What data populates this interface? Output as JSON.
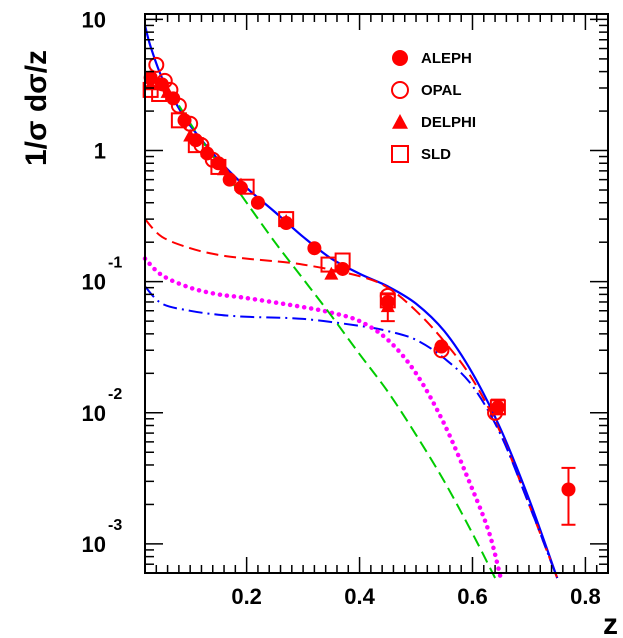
{
  "chart_data": {
    "type": "scatter",
    "title": "",
    "xlabel": "z",
    "ylabel": "1/σ dσ/z",
    "xlim": [
      0.02,
      0.84
    ],
    "ylim": [
      0.0006,
      11
    ],
    "yscale": "log",
    "grid": false,
    "legend_position": "top-right",
    "x_ticks": [
      {
        "value": 0.2,
        "label": "0.2"
      },
      {
        "value": 0.4,
        "label": "0.4"
      },
      {
        "value": 0.6,
        "label": "0.6"
      },
      {
        "value": 0.8,
        "label": "0.8"
      }
    ],
    "y_ticks": [
      {
        "value": 10,
        "base": "10",
        "exp": ""
      },
      {
        "value": 1,
        "base": "1",
        "exp": ""
      },
      {
        "value": 0.1,
        "base": "10",
        "exp": "-1"
      },
      {
        "value": 0.01,
        "base": "10",
        "exp": "-2"
      },
      {
        "value": 0.001,
        "base": "10",
        "exp": "-3"
      }
    ],
    "series": [
      {
        "name": "ALEPH",
        "marker": "filled-circle",
        "color": "#ff0000",
        "points": [
          [
            0.03,
            3.6
          ],
          [
            0.05,
            3.2
          ],
          [
            0.07,
            2.5
          ],
          [
            0.09,
            1.7
          ],
          [
            0.11,
            1.2
          ],
          [
            0.13,
            0.95
          ],
          [
            0.15,
            0.8
          ],
          [
            0.17,
            0.6
          ],
          [
            0.19,
            0.52
          ],
          [
            0.22,
            0.4
          ],
          [
            0.27,
            0.28
          ],
          [
            0.32,
            0.18
          ],
          [
            0.37,
            0.125
          ],
          [
            0.45,
            0.07
          ],
          [
            0.545,
            0.032
          ],
          [
            0.645,
            0.011
          ],
          [
            0.77,
            0.0026
          ]
        ],
        "errors": [
          [
            0.77,
            0.0014,
            0.0038
          ],
          [
            0.645,
            0.0098,
            0.0126
          ]
        ]
      },
      {
        "name": "OPAL",
        "marker": "open-circle",
        "color": "#ff0000",
        "points": [
          [
            0.04,
            4.5
          ],
          [
            0.055,
            3.4
          ],
          [
            0.065,
            2.9
          ],
          [
            0.08,
            2.2
          ],
          [
            0.1,
            1.6
          ],
          [
            0.12,
            1.1
          ],
          [
            0.14,
            0.85
          ],
          [
            0.45,
            0.078
          ],
          [
            0.545,
            0.03
          ],
          [
            0.64,
            0.01
          ]
        ]
      },
      {
        "name": "DELPHI",
        "marker": "filled-triangle",
        "color": "#ff0000",
        "points": [
          [
            0.03,
            3.2
          ],
          [
            0.06,
            2.8
          ],
          [
            0.1,
            1.3
          ],
          [
            0.13,
            1.0
          ],
          [
            0.16,
            0.72
          ],
          [
            0.19,
            0.55
          ],
          [
            0.27,
            0.29
          ],
          [
            0.35,
            0.115
          ],
          [
            0.45,
            0.065
          ]
        ],
        "errors": [
          [
            0.45,
            0.05,
            0.08
          ]
        ]
      },
      {
        "name": "SLD",
        "marker": "open-square",
        "color": "#ff0000",
        "points": [
          [
            0.03,
            2.9
          ],
          [
            0.045,
            2.7
          ],
          [
            0.08,
            1.7
          ],
          [
            0.11,
            1.1
          ],
          [
            0.15,
            0.75
          ],
          [
            0.2,
            0.53
          ],
          [
            0.27,
            0.3
          ],
          [
            0.345,
            0.135
          ],
          [
            0.37,
            0.145
          ],
          [
            0.45,
            0.072
          ],
          [
            0.645,
            0.011
          ]
        ]
      }
    ],
    "curves": [
      {
        "style": "solid",
        "color": "#0000ff",
        "points": [
          [
            0.02,
            9.0
          ],
          [
            0.03,
            6.2
          ],
          [
            0.05,
            3.6
          ],
          [
            0.08,
            2.1
          ],
          [
            0.1,
            1.55
          ],
          [
            0.15,
            0.85
          ],
          [
            0.2,
            0.52
          ],
          [
            0.25,
            0.34
          ],
          [
            0.3,
            0.22
          ],
          [
            0.35,
            0.15
          ],
          [
            0.4,
            0.115
          ],
          [
            0.45,
            0.092
          ],
          [
            0.5,
            0.068
          ],
          [
            0.55,
            0.042
          ],
          [
            0.6,
            0.02
          ],
          [
            0.65,
            0.0075
          ],
          [
            0.7,
            0.0022
          ],
          [
            0.75,
            0.00055
          ]
        ]
      },
      {
        "style": "dashed",
        "color": "#ff0000",
        "points": [
          [
            0.02,
            0.3
          ],
          [
            0.05,
            0.22
          ],
          [
            0.1,
            0.18
          ],
          [
            0.15,
            0.16
          ],
          [
            0.2,
            0.15
          ],
          [
            0.3,
            0.135
          ],
          [
            0.4,
            0.11
          ],
          [
            0.45,
            0.09
          ],
          [
            0.5,
            0.06
          ],
          [
            0.55,
            0.035
          ],
          [
            0.6,
            0.018
          ],
          [
            0.65,
            0.007
          ],
          [
            0.7,
            0.002
          ],
          [
            0.75,
            0.00055
          ]
        ]
      },
      {
        "style": "dash-dot",
        "color": "#0000ff",
        "points": [
          [
            0.02,
            0.092
          ],
          [
            0.05,
            0.068
          ],
          [
            0.1,
            0.06
          ],
          [
            0.15,
            0.056
          ],
          [
            0.2,
            0.054
          ],
          [
            0.3,
            0.052
          ],
          [
            0.4,
            0.046
          ],
          [
            0.45,
            0.042
          ],
          [
            0.5,
            0.036
          ],
          [
            0.55,
            0.026
          ],
          [
            0.6,
            0.016
          ],
          [
            0.65,
            0.0068
          ],
          [
            0.7,
            0.002
          ],
          [
            0.75,
            0.00055
          ]
        ]
      },
      {
        "style": "dotted",
        "color": "#ff00ff",
        "points": [
          [
            0.02,
            0.15
          ],
          [
            0.05,
            0.112
          ],
          [
            0.1,
            0.09
          ],
          [
            0.15,
            0.08
          ],
          [
            0.2,
            0.075
          ],
          [
            0.3,
            0.064
          ],
          [
            0.35,
            0.058
          ],
          [
            0.4,
            0.05
          ],
          [
            0.45,
            0.036
          ],
          [
            0.5,
            0.02
          ],
          [
            0.55,
            0.0082
          ],
          [
            0.6,
            0.0026
          ],
          [
            0.63,
            0.0012
          ],
          [
            0.65,
            0.00055
          ]
        ]
      },
      {
        "style": "dashed",
        "color": "#00cc00",
        "points": [
          [
            0.08,
            2.2
          ],
          [
            0.12,
            1.2
          ],
          [
            0.16,
            0.7
          ],
          [
            0.2,
            0.4
          ],
          [
            0.25,
            0.2
          ],
          [
            0.3,
            0.105
          ],
          [
            0.35,
            0.055
          ],
          [
            0.4,
            0.028
          ],
          [
            0.45,
            0.0145
          ],
          [
            0.5,
            0.0068
          ],
          [
            0.55,
            0.003
          ],
          [
            0.6,
            0.0012
          ],
          [
            0.64,
            0.00055
          ]
        ]
      }
    ]
  }
}
